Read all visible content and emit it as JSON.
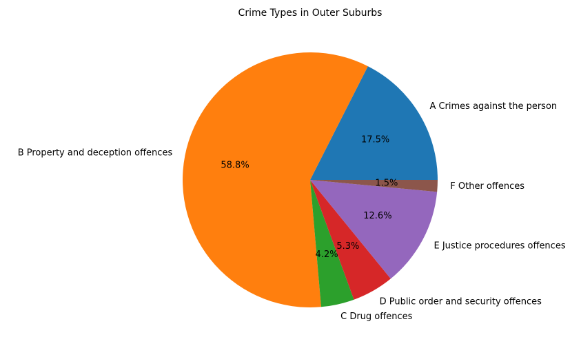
{
  "chart_data": {
    "type": "pie",
    "title": "Crime Types in Outer Suburbs",
    "categories": [
      "A Crimes against the person",
      "B Property and deception offences",
      "C Drug offences",
      "D Public order and security offences",
      "E Justice procedures offences",
      "F Other offences"
    ],
    "values": [
      17.5,
      58.8,
      4.2,
      5.3,
      12.6,
      1.5
    ],
    "value_labels": [
      "17.5%",
      "58.8%",
      "4.2%",
      "5.3%",
      "12.6%",
      "1.5%"
    ],
    "colors": [
      "#1f77b4",
      "#ff7f0e",
      "#2ca02c",
      "#d62728",
      "#9467bd",
      "#8c564b"
    ],
    "start_angle": "east, counter-clockwise",
    "legend": "none"
  }
}
